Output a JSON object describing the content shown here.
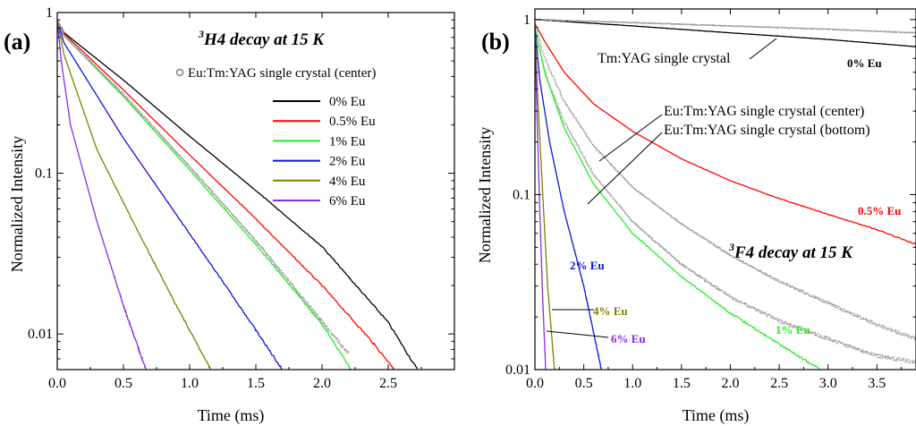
{
  "chart_data": [
    {
      "type": "line",
      "panel_label": "(a)",
      "title": "H4 decay at 15 K",
      "title_superscript": "3",
      "xlabel": "Time (ms)",
      "ylabel": "Normalized Intensity",
      "xlim": [
        0,
        3.0
      ],
      "ylim": [
        0.006,
        1.0
      ],
      "y_scale": "log",
      "x_ticks": [
        "0.0",
        "0.5",
        "1.0",
        "1.5",
        "2.0",
        "2.5"
      ],
      "y_ticks": [
        {
          "value": 1,
          "label": "1"
        },
        {
          "value": 0.1,
          "label": "0.1"
        },
        {
          "value": 0.01,
          "label": "0.01"
        }
      ],
      "grid": false,
      "legend_position": "top-right",
      "legend_marker_label": "Eu:Tm:YAG single crystal (center)",
      "series": [
        {
          "name": "0% Eu",
          "color": "#000000",
          "style": "line",
          "x": [
            0,
            0.05,
            0.5,
            1.0,
            1.5,
            2.0,
            2.5,
            2.72
          ],
          "y": [
            0.9,
            0.75,
            0.38,
            0.17,
            0.078,
            0.035,
            0.0118,
            0.006
          ]
        },
        {
          "name": "0.5% Eu",
          "color": "#ff0000",
          "style": "line",
          "x": [
            0,
            0.05,
            0.5,
            1.0,
            1.5,
            2.0,
            2.35,
            2.55
          ],
          "y": [
            0.9,
            0.74,
            0.33,
            0.13,
            0.052,
            0.02,
            0.0095,
            0.006
          ]
        },
        {
          "name": "1% Eu",
          "color": "#22ee22",
          "style": "line",
          "x": [
            0,
            0.05,
            0.5,
            1.0,
            1.5,
            2.0,
            2.22
          ],
          "y": [
            0.9,
            0.72,
            0.3,
            0.105,
            0.036,
            0.0115,
            0.006
          ]
        },
        {
          "name": "2% Eu",
          "color": "#0a14e0",
          "style": "line",
          "x": [
            0,
            0.05,
            0.5,
            1.0,
            1.4,
            1.7
          ],
          "y": [
            0.9,
            0.65,
            0.165,
            0.042,
            0.014,
            0.006
          ]
        },
        {
          "name": "4% Eu",
          "color": "#808000",
          "style": "line",
          "x": [
            0,
            0.05,
            0.3,
            0.6,
            0.9,
            1.16
          ],
          "y": [
            0.9,
            0.55,
            0.14,
            0.045,
            0.015,
            0.006
          ]
        },
        {
          "name": "6% Eu",
          "color": "#8a2be2",
          "style": "line",
          "x": [
            0,
            0.03,
            0.1,
            0.3,
            0.5,
            0.67
          ],
          "y": [
            0.9,
            0.5,
            0.2,
            0.05,
            0.015,
            0.006
          ]
        },
        {
          "name": "Eu:Tm:YAG single crystal (center)",
          "color": "#a0a0a0",
          "style": "points",
          "x": [
            0,
            0.05,
            0.5,
            1.0,
            1.5,
            2.0,
            2.2
          ],
          "y": [
            0.9,
            0.72,
            0.31,
            0.11,
            0.038,
            0.012,
            0.0075
          ]
        }
      ]
    },
    {
      "type": "line",
      "panel_label": "(b)",
      "title": "F4 decay at 15 K",
      "title_superscript": "3",
      "xlabel": "Time (ms)",
      "ylabel": "Normalized Intensity",
      "xlim": [
        0,
        3.9
      ],
      "ylim": [
        0.01,
        1.15
      ],
      "y_scale": "log",
      "x_ticks": [
        "0.0",
        "0.5",
        "1.0",
        "1.5",
        "2.0",
        "2.5",
        "3.0",
        "3.5"
      ],
      "y_ticks": [
        {
          "value": 1,
          "label": "1"
        },
        {
          "value": 0.1,
          "label": "0.1"
        },
        {
          "value": 0.01,
          "label": "0.01"
        }
      ],
      "grid": false,
      "annotations": [
        "Tm:YAG single crystal",
        "Eu:Tm:YAG single crystal (center)",
        "Eu:Tm:YAG single crystal (bottom)"
      ],
      "series": [
        {
          "name": "0% Eu",
          "color": "#000000",
          "style": "line",
          "x": [
            0,
            1.0,
            2.0,
            3.0,
            3.9
          ],
          "y": [
            1.0,
            0.92,
            0.84,
            0.77,
            0.7
          ]
        },
        {
          "name": "Tm:YAG single crystal",
          "color": "#a0a0a0",
          "style": "points",
          "x": [
            0,
            1.0,
            2.0,
            3.0,
            3.9
          ],
          "y": [
            1.0,
            0.96,
            0.92,
            0.88,
            0.84
          ]
        },
        {
          "name": "0.5% Eu",
          "color": "#ff0000",
          "style": "line",
          "x": [
            0,
            0.1,
            0.3,
            0.6,
            1.0,
            1.5,
            2.0,
            2.5,
            3.0,
            3.5,
            3.9
          ],
          "y": [
            0.95,
            0.75,
            0.5,
            0.33,
            0.23,
            0.16,
            0.12,
            0.095,
            0.077,
            0.063,
            0.052
          ]
        },
        {
          "name": "Eu:Tm:YAG single crystal (center)",
          "color": "#a0a0a0",
          "style": "points",
          "x": [
            0,
            0.1,
            0.3,
            0.6,
            1.0,
            1.5,
            2.0,
            2.5,
            3.0,
            3.5,
            3.9
          ],
          "y": [
            0.95,
            0.6,
            0.34,
            0.19,
            0.11,
            0.068,
            0.045,
            0.032,
            0.024,
            0.018,
            0.015
          ]
        },
        {
          "name": "Eu:Tm:YAG single crystal (bottom)",
          "color": "#a0a0a0",
          "style": "points",
          "x": [
            0,
            0.1,
            0.3,
            0.6,
            1.0,
            1.5,
            2.0,
            2.5,
            3.0,
            3.5,
            3.9
          ],
          "y": [
            0.9,
            0.5,
            0.26,
            0.13,
            0.07,
            0.04,
            0.026,
            0.019,
            0.015,
            0.012,
            0.011
          ]
        },
        {
          "name": "1% Eu",
          "color": "#22ee22",
          "style": "line",
          "x": [
            0,
            0.1,
            0.3,
            0.6,
            1.0,
            1.5,
            2.0,
            2.5,
            2.92
          ],
          "y": [
            0.9,
            0.5,
            0.24,
            0.115,
            0.06,
            0.034,
            0.021,
            0.014,
            0.01
          ]
        },
        {
          "name": "2% Eu",
          "color": "#0a14e0",
          "style": "line",
          "x": [
            0,
            0.05,
            0.15,
            0.3,
            0.5,
            0.68
          ],
          "y": [
            0.9,
            0.45,
            0.2,
            0.08,
            0.03,
            0.01
          ]
        },
        {
          "name": "4% Eu",
          "color": "#808000",
          "style": "line",
          "x": [
            0,
            0.03,
            0.08,
            0.13,
            0.2
          ],
          "y": [
            0.9,
            0.35,
            0.1,
            0.03,
            0.01
          ]
        },
        {
          "name": "6% Eu",
          "color": "#8a2be2",
          "style": "line",
          "x": [
            0,
            0.02,
            0.05,
            0.08,
            0.11
          ],
          "y": [
            0.8,
            0.3,
            0.08,
            0.025,
            0.01
          ]
        }
      ],
      "curve_labels": [
        {
          "series": "0% Eu",
          "text": "0% Eu",
          "color": "#000000"
        },
        {
          "series": "0.5% Eu",
          "text": "0.5% Eu",
          "color": "#ff0000"
        },
        {
          "series": "1% Eu",
          "text": "1% Eu",
          "color": "#22ee22"
        },
        {
          "series": "2% Eu",
          "text": "2% Eu",
          "color": "#0a14e0"
        },
        {
          "series": "4% Eu",
          "text": "4% Eu",
          "color": "#808000"
        },
        {
          "series": "6% Eu",
          "text": "6% Eu",
          "color": "#8a2be2"
        }
      ]
    }
  ]
}
